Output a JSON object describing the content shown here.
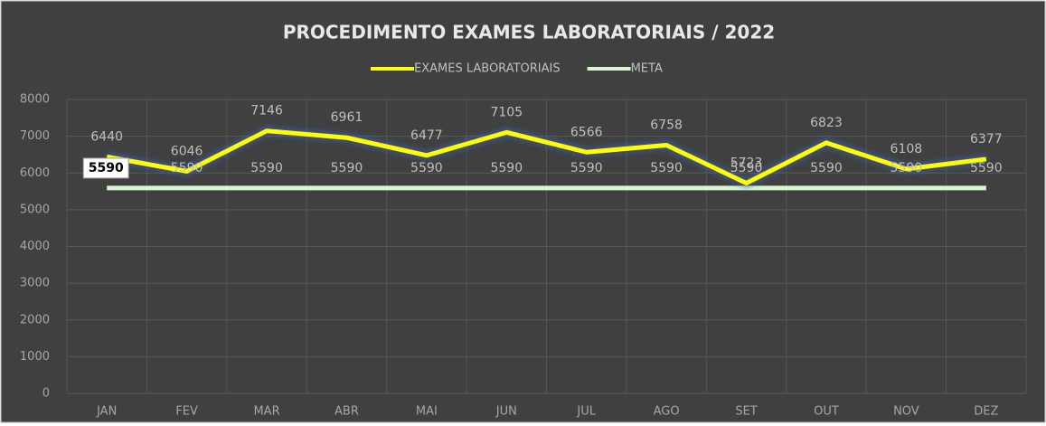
{
  "chart_data": {
    "type": "line",
    "title": "PROCEDIMENTO EXAMES LABORATORIAIS / 2022",
    "categories": [
      "JAN",
      "FEV",
      "MAR",
      "ABR",
      "MAI",
      "JUN",
      "JUL",
      "AGO",
      "SET",
      "OUT",
      "NOV",
      "DEZ"
    ],
    "series": [
      {
        "name": "EXAMES LABORATORIAIS",
        "color": "#ffff00",
        "values": [
          6440,
          6046,
          7146,
          6961,
          6477,
          7105,
          6566,
          6758,
          5723,
          6823,
          6108,
          6377
        ]
      },
      {
        "name": "META",
        "color": "#d9f5d3",
        "values": [
          5590,
          5590,
          5590,
          5590,
          5590,
          5590,
          5590,
          5590,
          5590,
          5590,
          5590,
          5590
        ]
      }
    ],
    "ylim": [
      0,
      8000
    ],
    "yticks": [
      0,
      1000,
      2000,
      3000,
      4000,
      5000,
      6000,
      7000,
      8000
    ],
    "grid": true,
    "legend": "top"
  }
}
